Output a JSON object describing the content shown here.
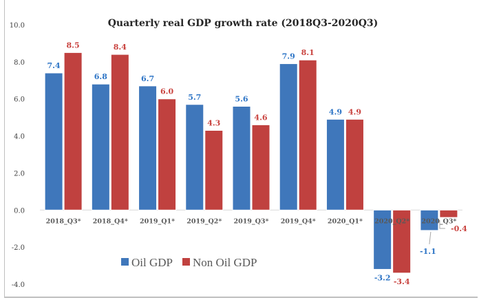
{
  "chart_data": {
    "type": "bar",
    "title": "Quarterly real GDP growth rate (2018Q3-2020Q3)",
    "xlabel": "",
    "ylabel": "",
    "ylim": [
      -4.0,
      10.0
    ],
    "yticks": [
      10.0,
      8.0,
      6.0,
      4.0,
      2.0,
      0.0,
      -2.0,
      -4.0
    ],
    "ytick_labels": [
      "10.0",
      "8.0",
      "6.0",
      "4.0",
      "2.0",
      "0.0",
      "-2.0",
      "-4.0"
    ],
    "grid": false,
    "legend_position": "bottom-left",
    "categories": [
      "2018_Q3*",
      "2018_Q4*",
      "2019_Q1*",
      "2019_Q2*",
      "2019_Q3*",
      "2019_Q4*",
      "2020_Q1*",
      "2020_Q2*",
      "2020_Q3*"
    ],
    "series": [
      {
        "name": "Oil GDP",
        "color": "#3f77bb",
        "label_color": "#2e75c6",
        "values": [
          7.4,
          6.8,
          6.7,
          5.7,
          5.6,
          7.9,
          4.9,
          -3.2,
          -1.1
        ],
        "labels": [
          "7.4",
          "6.8",
          "6.7",
          "5.7",
          "5.6",
          "7.9",
          "4.9",
          "-3.2",
          "-1.1"
        ]
      },
      {
        "name": "Non Oil GDP",
        "color": "#c0413f",
        "label_color": "#c9433f",
        "values": [
          8.5,
          8.4,
          6.0,
          4.3,
          4.6,
          8.1,
          4.9,
          -3.4,
          -0.4
        ],
        "labels": [
          "8.5",
          "8.4",
          "6.0",
          "4.3",
          "4.6",
          "8.1",
          "4.9",
          "-3.4",
          "-0.4"
        ]
      }
    ]
  }
}
